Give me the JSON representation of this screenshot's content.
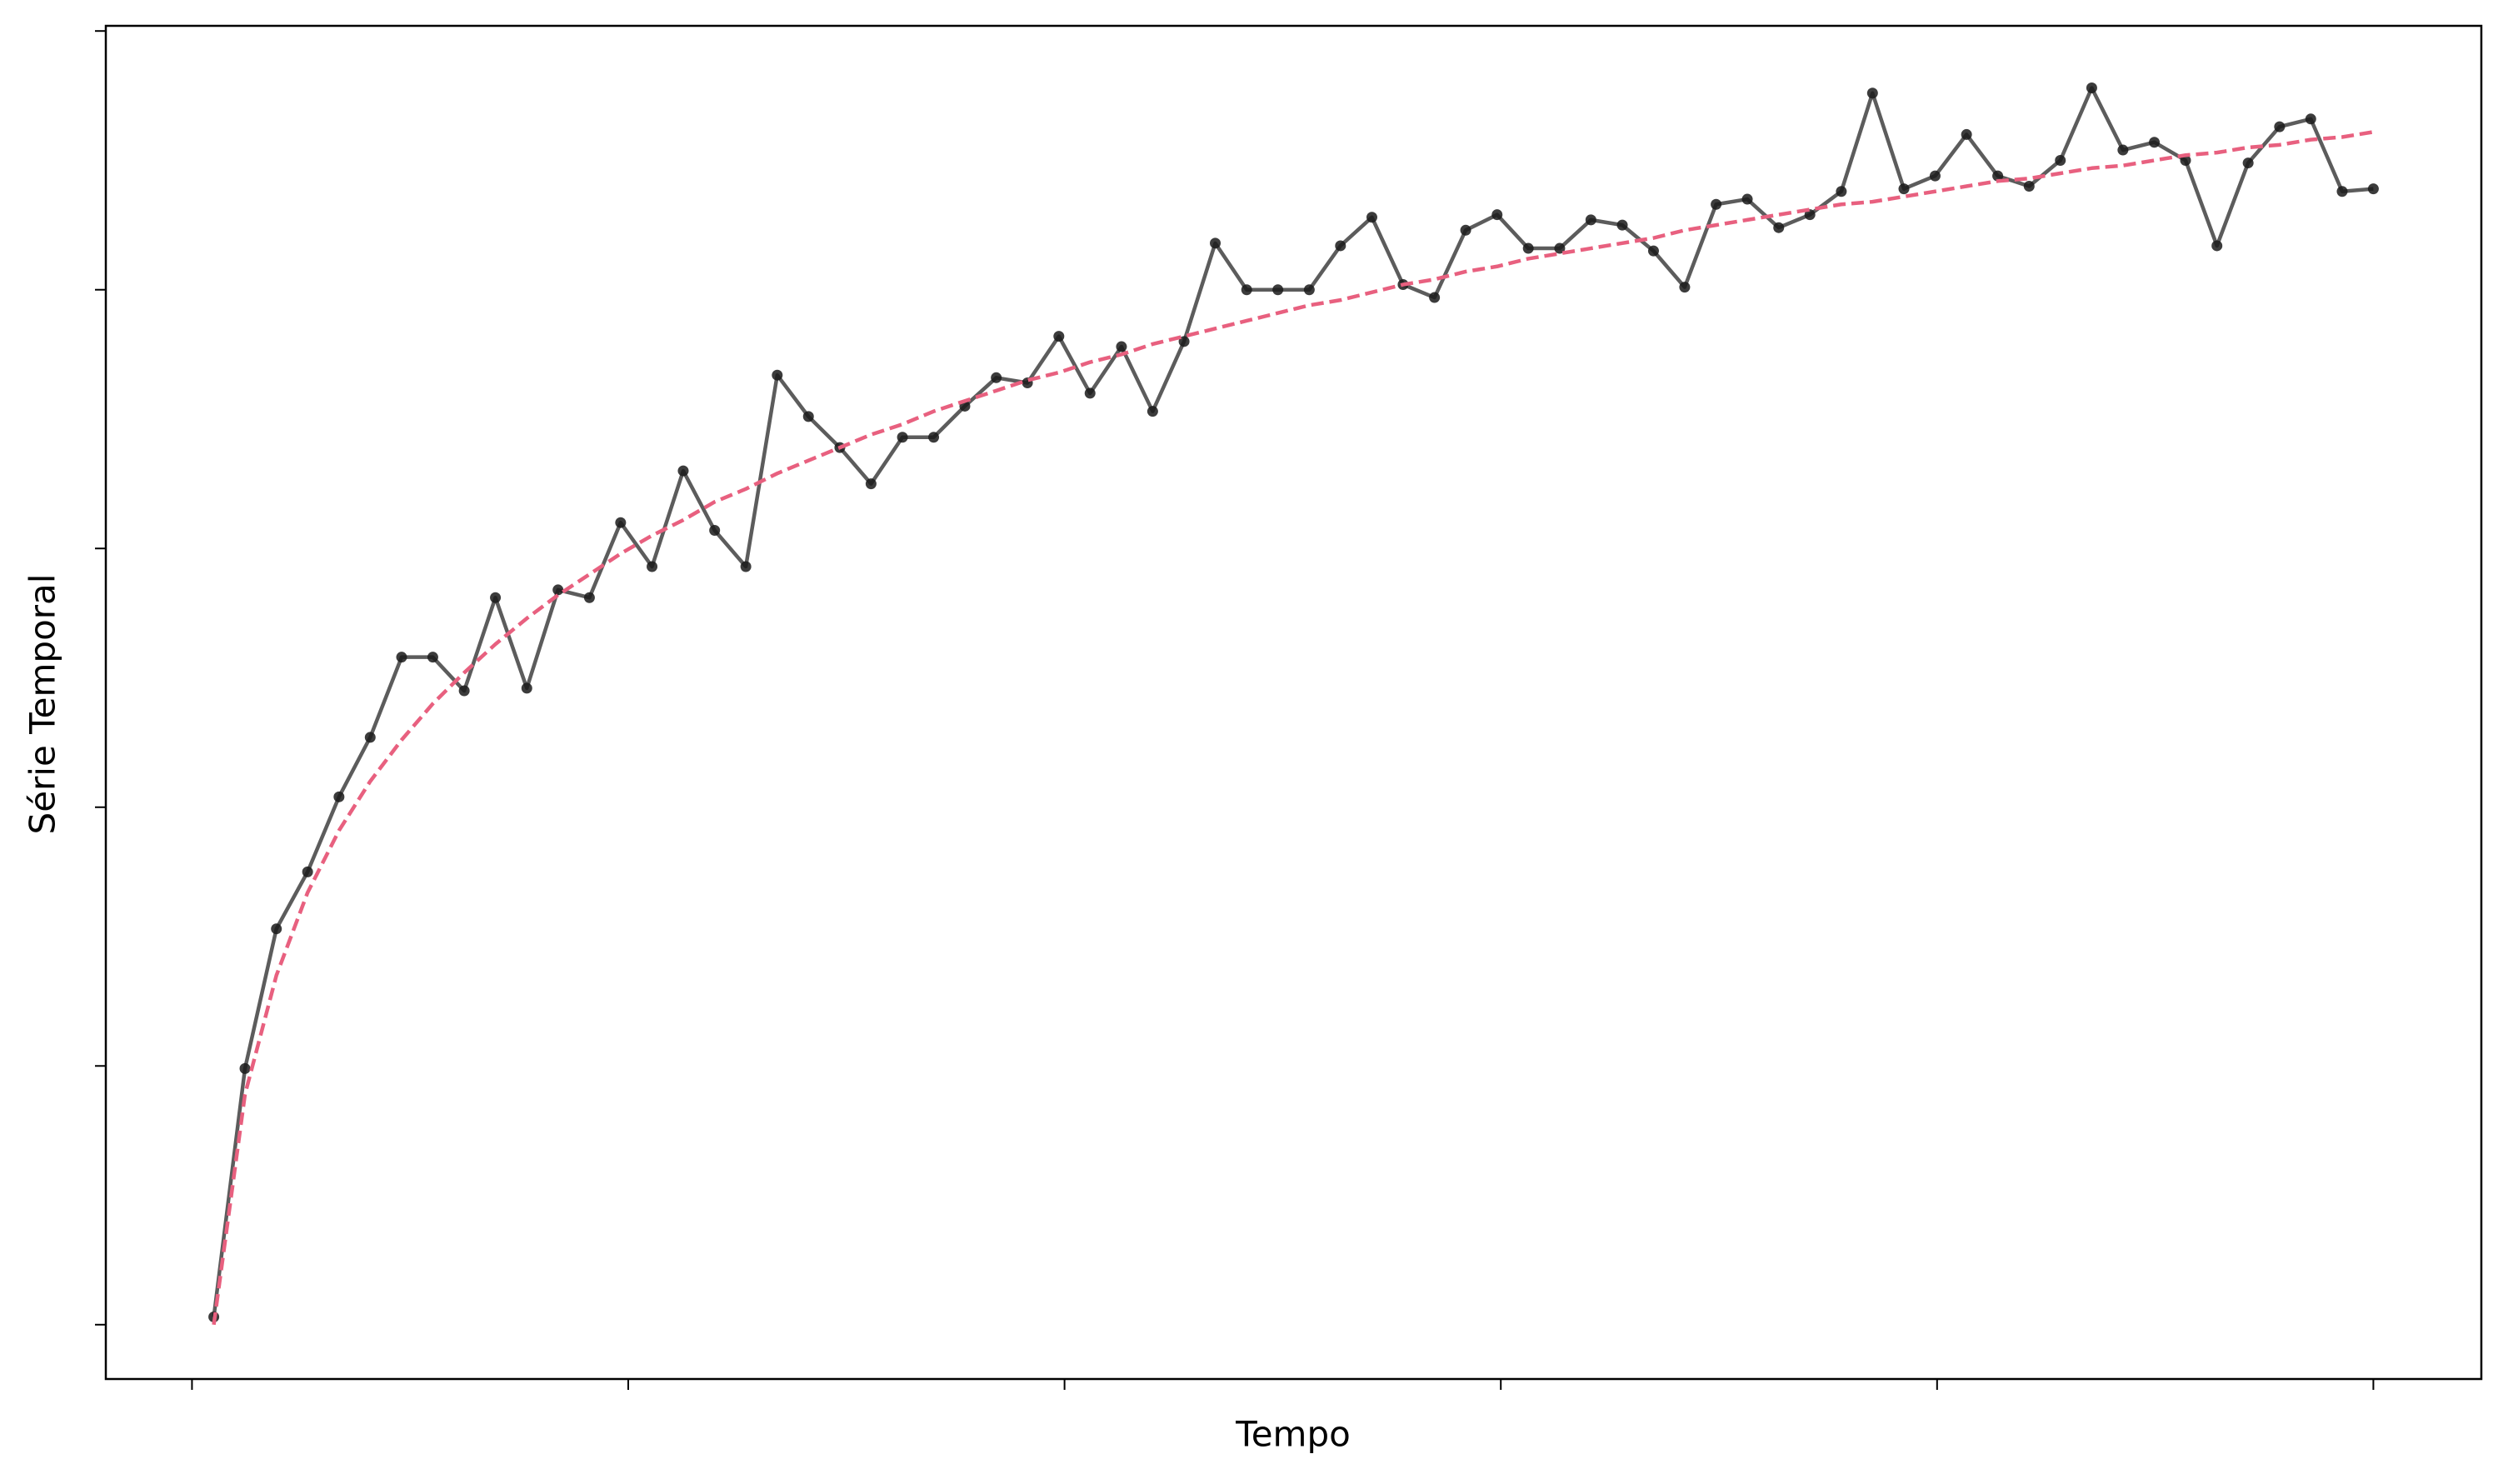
{
  "chart_data": {
    "type": "line",
    "x_label": "Tempo",
    "y_label": "Série Temporal",
    "x": [
      1,
      2.43,
      3.87,
      5.3,
      6.74,
      8.17,
      9.61,
      11.04,
      12.48,
      13.91,
      15.35,
      16.78,
      18.22,
      19.65,
      21.09,
      22.52,
      23.96,
      25.39,
      26.83,
      28.26,
      29.7,
      31.13,
      32.57,
      34,
      35.43,
      36.87,
      38.3,
      39.74,
      41.17,
      42.61,
      44.04,
      45.48,
      46.91,
      48.35,
      49.78,
      51.22,
      52.65,
      54.09,
      55.52,
      56.96,
      58.39,
      59.83,
      61.26,
      62.7,
      64.13,
      65.57,
      67,
      68.43,
      69.87,
      71.3,
      72.74,
      74.17,
      75.61,
      77.04,
      78.48,
      79.91,
      81.35,
      82.78,
      84.22,
      85.65,
      87.09,
      88.52,
      89.96,
      91.39,
      92.83,
      94.26,
      95.7,
      97.13,
      98.57,
      100
    ],
    "series": [
      {
        "color": "#333333",
        "marker_color": "#1a1a1a",
        "markers": true,
        "dashed": false,
        "values": [
          0.03,
          0.99,
          1.53,
          1.75,
          2.04,
          2.27,
          2.58,
          2.58,
          2.45,
          2.81,
          2.46,
          2.84,
          2.81,
          3.1,
          2.93,
          3.3,
          3.07,
          2.93,
          3.67,
          3.51,
          3.39,
          3.25,
          3.43,
          3.43,
          3.55,
          3.66,
          3.64,
          3.82,
          3.6,
          3.78,
          3.53,
          3.8,
          4.18,
          4.0,
          4.0,
          4.0,
          4.17,
          4.28,
          4.02,
          3.97,
          4.23,
          4.29,
          4.16,
          4.16,
          4.27,
          4.25,
          4.15,
          4.01,
          4.33,
          4.35,
          4.24,
          4.29,
          4.38,
          4.76,
          4.39,
          4.44,
          4.6,
          4.44,
          4.4,
          4.5,
          4.78,
          4.54,
          4.57,
          4.5,
          4.17,
          4.49,
          4.63,
          4.66,
          4.38,
          4.39
        ]
      },
      {
        "color": "#e8607f",
        "markers": false,
        "dashed": true,
        "values": [
          0.0,
          0.89,
          1.35,
          1.67,
          1.91,
          2.1,
          2.26,
          2.4,
          2.52,
          2.63,
          2.73,
          2.82,
          2.9,
          2.98,
          3.05,
          3.11,
          3.18,
          3.23,
          3.29,
          3.34,
          3.39,
          3.44,
          3.48,
          3.53,
          3.57,
          3.61,
          3.65,
          3.68,
          3.72,
          3.75,
          3.79,
          3.82,
          3.85,
          3.88,
          3.91,
          3.94,
          3.96,
          3.99,
          4.02,
          4.04,
          4.07,
          4.09,
          4.12,
          4.14,
          4.16,
          4.18,
          4.2,
          4.23,
          4.25,
          4.27,
          4.29,
          4.31,
          4.33,
          4.34,
          4.36,
          4.38,
          4.4,
          4.42,
          4.43,
          4.45,
          4.47,
          4.48,
          4.5,
          4.52,
          4.53,
          4.55,
          4.56,
          4.58,
          4.59,
          4.61
        ]
      }
    ],
    "xlim": [
      -3.95,
      104.95
    ],
    "ylim": [
      -0.21,
      5.02
    ],
    "xticks": [
      0,
      20,
      40,
      60,
      80,
      100
    ],
    "yticks": [
      0,
      1,
      2,
      3,
      4,
      5
    ]
  }
}
